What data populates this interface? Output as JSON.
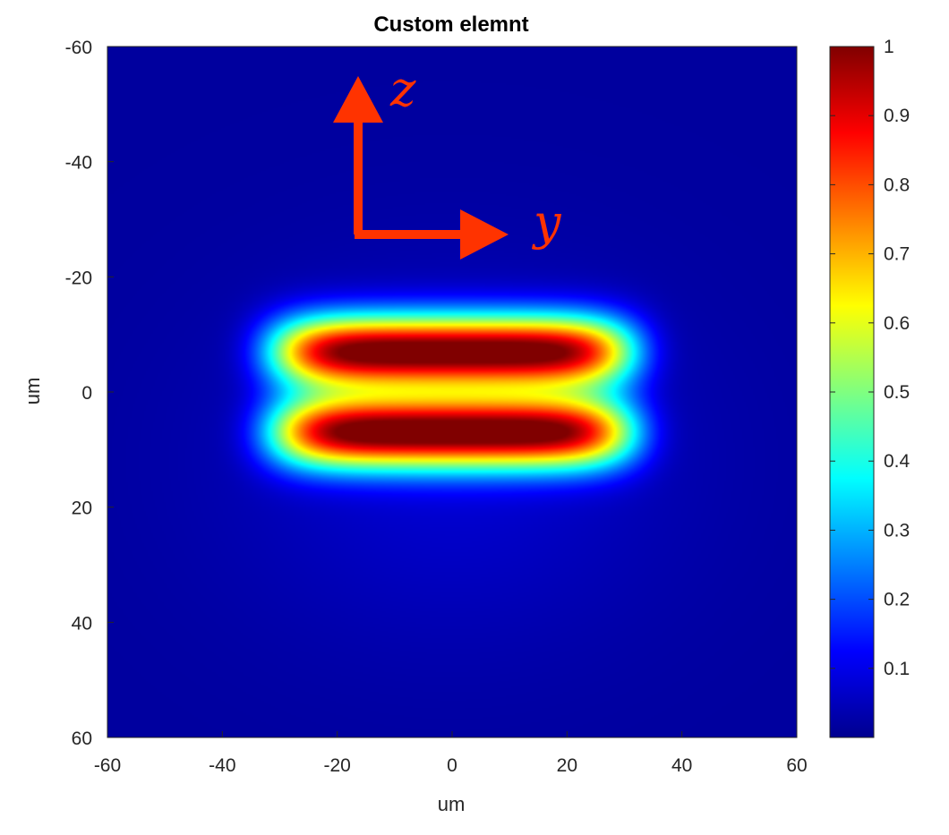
{
  "chart_data": {
    "type": "heatmap",
    "title": "Custom elemnt",
    "xlabel": "um",
    "ylabel": "um",
    "xlim": [
      -60,
      60
    ],
    "ylim": [
      -60,
      60
    ],
    "y_axis_reversed": true,
    "x_ticks": [
      "-60",
      "-40",
      "-20",
      "0",
      "20",
      "40",
      "60"
    ],
    "y_ticks": [
      "-60",
      "-40",
      "-20",
      "0",
      "20",
      "40",
      "60"
    ],
    "colormap": "jet",
    "colorbar": {
      "range": [
        0,
        1
      ],
      "ticks": [
        "0.1",
        "0.2",
        "0.3",
        "0.4",
        "0.5",
        "0.6",
        "0.7",
        "0.8",
        "0.9",
        "1"
      ]
    },
    "lobes": [
      {
        "y_center": 0,
        "z_center": -7,
        "y_halfwidth": 32,
        "z_halfwidth": 6.5,
        "peak": 1.0
      },
      {
        "y_center": 0,
        "z_center": 7,
        "y_halfwidth": 32,
        "z_halfwidth": 6.5,
        "peak": 1.0
      }
    ],
    "background_level": 0.03,
    "annotations": [
      {
        "text": "z",
        "color": "#ff3300"
      },
      {
        "text": "y",
        "color": "#ff3300"
      }
    ]
  }
}
